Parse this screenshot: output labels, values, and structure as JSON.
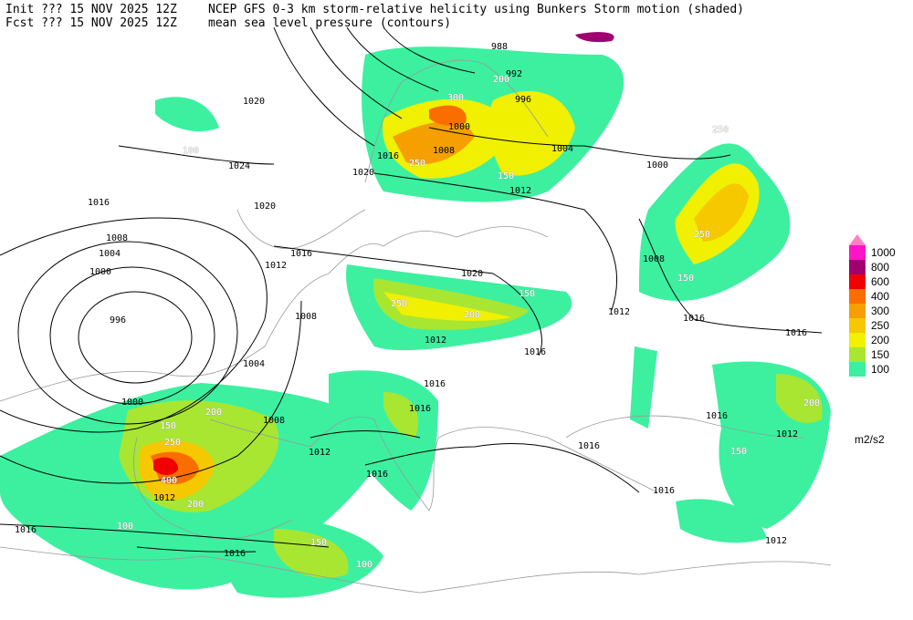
{
  "header": {
    "init": "Init  ??? 15 NOV 2025 12Z",
    "fcst": "Fcst ??? 15 NOV 2025 12Z",
    "title": "NCEP GFS 0-3 km storm-relative helicity using Bunkers Storm motion (shaded)",
    "subtitle": "mean sea level pressure (contours)"
  },
  "legend": {
    "levels": [
      100,
      150,
      200,
      250,
      300,
      400,
      600,
      800,
      1000
    ],
    "colors": [
      "#3cf0a0",
      "#a8e632",
      "#f0f000",
      "#f5c800",
      "#f5a000",
      "#fa6e00",
      "#f00000",
      "#a00070",
      "#ff14c8"
    ],
    "top_color": "#ff80c8",
    "unit": "m2/s2"
  },
  "isobar_labels": [
    1024,
    1020,
    1016,
    1008,
    1004,
    1000,
    996,
    1000,
    1004,
    1008,
    1012,
    1016,
    1020,
    1020,
    1020,
    1016,
    1008,
    1000,
    996,
    992,
    988,
    1004,
    1000,
    1012,
    1008,
    1012,
    1016,
    1016,
    1016,
    1012,
    1016,
    1016,
    1012,
    1008,
    1016,
    1012,
    1016,
    1016,
    1016,
    1016,
    1016,
    1012,
    1012
  ],
  "helicity_labels": [
    100,
    150,
    200,
    250,
    300,
    250,
    200,
    150,
    250,
    200,
    150,
    400,
    250,
    150,
    100,
    200,
    150,
    100,
    150,
    200,
    250
  ]
}
